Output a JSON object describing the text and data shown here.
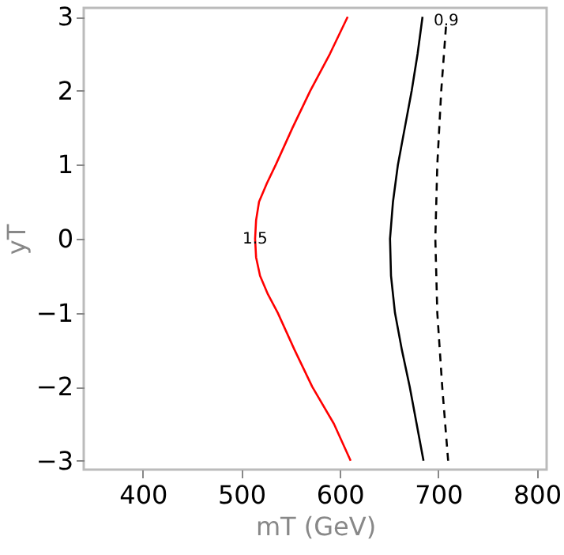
{
  "chart_data": {
    "type": "line",
    "xlabel": "mT (GeV)",
    "ylabel": "yT",
    "xlim": [
      340,
      810
    ],
    "ylim": [
      -3.12,
      3.12
    ],
    "xticks": [
      400,
      500,
      600,
      700,
      800
    ],
    "yticks": [
      -3,
      -2,
      -1,
      0,
      1,
      2,
      3
    ],
    "grid": false,
    "marker": "none",
    "series": [
      {
        "color": "#ff0000",
        "line_style": "solid",
        "x": [
          611,
          594,
          572,
          554,
          537,
          527,
          519,
          515,
          514,
          515,
          518,
          526,
          535,
          552,
          570,
          590,
          608
        ],
        "values": [
          -3,
          -2.5,
          -2,
          -1.5,
          -1,
          -0.75,
          -0.5,
          -0.25,
          0,
          0.25,
          0.5,
          0.75,
          1,
          1.5,
          2,
          2.5,
          3
        ]
      },
      {
        "color": "#000000",
        "line_style": "solid",
        "x": [
          685,
          678,
          671,
          663,
          656,
          652,
          651,
          654,
          659,
          666,
          673,
          679,
          684
        ],
        "values": [
          -3,
          -2.5,
          -2,
          -1.5,
          -1,
          -0.5,
          0,
          0.5,
          1,
          1.5,
          2,
          2.5,
          3
        ]
      },
      {
        "color": "#000000",
        "line_style": "dashed",
        "x": [
          710,
          704,
          699,
          697,
          699,
          703,
          708
        ],
        "values": [
          -3,
          -2,
          -1,
          0,
          1,
          2,
          2.9
        ]
      }
    ],
    "annotations": [
      {
        "text": "1.5",
        "x": 514,
        "y": 0
      },
      {
        "text": "0.9",
        "x": 708,
        "y": 2.95
      }
    ]
  }
}
